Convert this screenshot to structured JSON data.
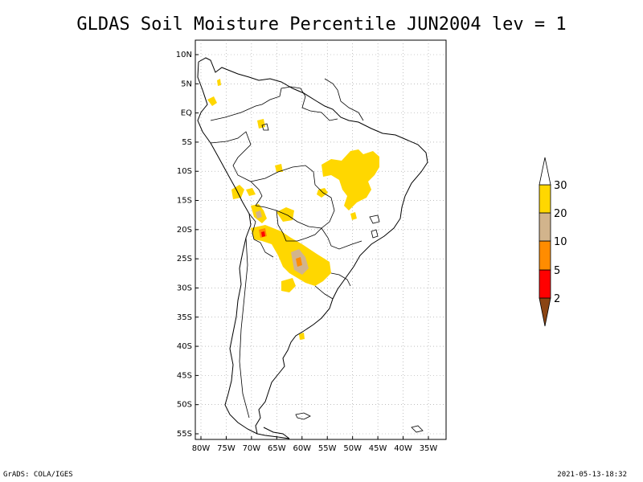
{
  "title": "GLDAS Soil Moisture Percentile JUN2004 lev = 1",
  "footer_left": "GrADS: COLA/IGES",
  "footer_right": "2021-05-13-18:32",
  "map": {
    "lon_range": [
      -80,
      -30
    ],
    "lat_range": [
      -56,
      12
    ],
    "lat_labels": [
      "10N",
      "5N",
      "EQ",
      "5S",
      "10S",
      "15S",
      "20S",
      "25S",
      "30S",
      "35S",
      "40S",
      "45S",
      "50S",
      "55S"
    ],
    "lat_values": [
      10,
      5,
      0,
      -5,
      -10,
      -15,
      -20,
      -25,
      -30,
      -35,
      -40,
      -45,
      -50,
      -55
    ],
    "lon_labels": [
      "80W",
      "75W",
      "70W",
      "65W",
      "60W",
      "55W",
      "50W",
      "45W",
      "40W",
      "35W"
    ],
    "lon_values": [
      -80,
      -75,
      -70,
      -65,
      -60,
      -55,
      -50,
      -45,
      -40,
      -35
    ],
    "grid": "dotted"
  },
  "colorbar": {
    "labels": [
      "2",
      "5",
      "10",
      "20",
      "30"
    ],
    "colors": [
      "#8b4513",
      "#ff0000",
      "#ff8c00",
      "#d2b48c",
      "#ffd700",
      "#ffffff"
    ]
  },
  "colors": {
    "yellow": "#ffd700",
    "tan": "#d2b48c",
    "orange": "#ff8c00",
    "red": "#ff0000",
    "brown": "#8b4513"
  }
}
